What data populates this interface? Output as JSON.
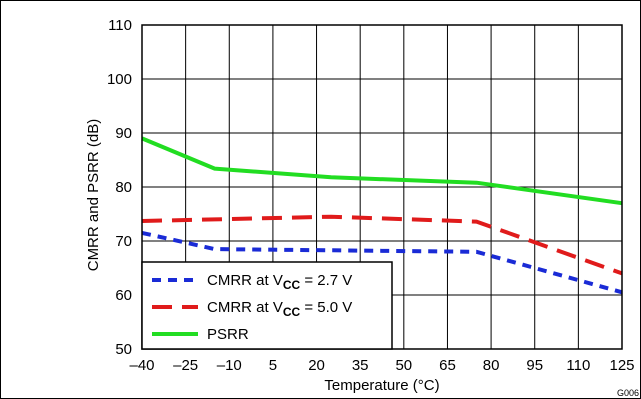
{
  "chart_data": {
    "type": "line",
    "xlabel": "Temperature (°C)",
    "ylabel": "CMRR and PSRR (dB)",
    "xlim": [
      -40,
      125
    ],
    "ylim": [
      50,
      110
    ],
    "x_ticks": [
      "–40",
      "–25",
      "–10",
      "5",
      "20",
      "35",
      "50",
      "65",
      "80",
      "95",
      "110",
      "125"
    ],
    "y_ticks": [
      "50",
      "60",
      "70",
      "80",
      "90",
      "100",
      "110"
    ],
    "grid": true,
    "legend_position": "bottom-left",
    "figure_id": "G006",
    "series": [
      {
        "name": "CMRR at VCC = 2.7 V",
        "legend_prefix": "CMRR at V",
        "legend_sub": "CC",
        "legend_suffix": " =  2.7 V",
        "color": "#1a2bd6",
        "dash": "short",
        "x": [
          -40,
          -15,
          75,
          125
        ],
        "y": [
          71.5,
          68.5,
          68.0,
          60.5
        ]
      },
      {
        "name": "CMRR at VCC = 5.0 V",
        "legend_prefix": "CMRR at V",
        "legend_sub": "CC",
        "legend_suffix": " =  5.0 V",
        "color": "#e01b1b",
        "dash": "long",
        "x": [
          -40,
          -15,
          25,
          75,
          125
        ],
        "y": [
          73.7,
          74.0,
          74.5,
          73.6,
          64.0
        ]
      },
      {
        "name": "PSRR",
        "legend_prefix": "PSRR",
        "legend_sub": "",
        "legend_suffix": "",
        "color": "#22dd22",
        "dash": "solid",
        "x": [
          -40,
          -15,
          25,
          75,
          125
        ],
        "y": [
          89.0,
          83.4,
          81.8,
          80.8,
          77.0
        ]
      }
    ]
  }
}
